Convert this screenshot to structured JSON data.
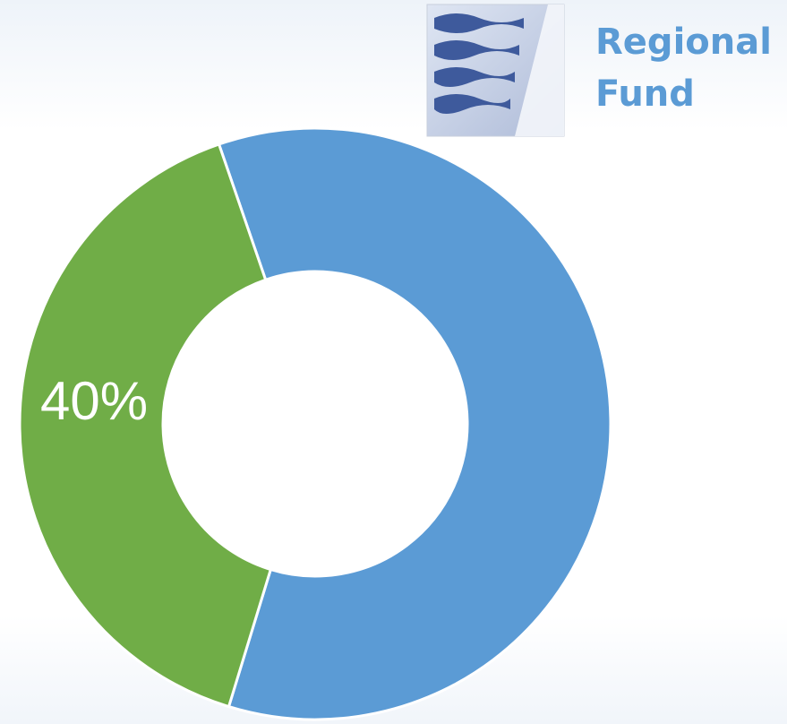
{
  "chart_data": {
    "type": "donut",
    "title": "Regional Fund",
    "values": [
      60,
      40
    ],
    "value_labels": [
      null,
      "40%"
    ],
    "colors": [
      "#5b9bd5",
      "#70ad47"
    ]
  }
}
